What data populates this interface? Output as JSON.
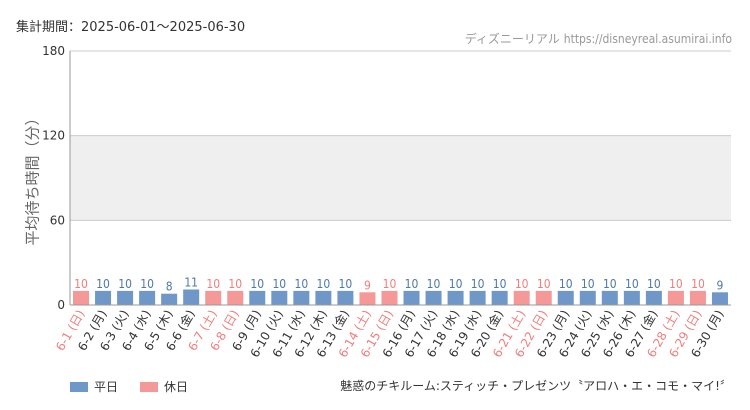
{
  "period": "集計期間：2025-06-01～2025-06-30",
  "source": {
    "site": "ディズニーリアル",
    "url": "https://disneyreal.asumirai.info"
  },
  "attraction": "魅惑のチキルーム:スティッチ・プレゼンツ〝アロハ・エ・コモ・マイ!〞",
  "colors": {
    "weekday": "#6f98c8",
    "holiday": "#f59898",
    "weekday_label": "#4f79a8",
    "holiday_label": "#ef7f7f",
    "band": "#efefef",
    "grid": "#cccccc",
    "axis": "#999999"
  },
  "chart_data": {
    "type": "bar",
    "ylabel": "平均待ち時間（分）",
    "ylim": [
      0,
      180
    ],
    "yticks": [
      0,
      60,
      120,
      180
    ],
    "shaded_band": [
      60,
      120
    ],
    "legend": [
      {
        "key": "weekday",
        "label": "平日"
      },
      {
        "key": "holiday",
        "label": "休日"
      }
    ],
    "categories": [
      "6-1 (日)",
      "6-2 (月)",
      "6-3 (火)",
      "6-4 (水)",
      "6-5 (木)",
      "6-6 (金)",
      "6-7 (土)",
      "6-8 (日)",
      "6-9 (月)",
      "6-10 (火)",
      "6-11 (水)",
      "6-12 (木)",
      "6-13 (金)",
      "6-14 (土)",
      "6-15 (日)",
      "6-16 (月)",
      "6-17 (火)",
      "6-18 (水)",
      "6-19 (水)",
      "6-20 (金)",
      "6-21 (土)",
      "6-22 (日)",
      "6-23 (月)",
      "6-24 (火)",
      "6-25 (水)",
      "6-26 (木)",
      "6-27 (金)",
      "6-28 (土)",
      "6-29 (日)",
      "6-30 (月)"
    ],
    "values": [
      10,
      10,
      10,
      10,
      8,
      11,
      10,
      10,
      10,
      10,
      10,
      10,
      10,
      9,
      10,
      10,
      10,
      10,
      10,
      10,
      10,
      10,
      10,
      10,
      10,
      10,
      10,
      10,
      10,
      9
    ],
    "day_type": [
      "holiday",
      "weekday",
      "weekday",
      "weekday",
      "weekday",
      "weekday",
      "holiday",
      "holiday",
      "weekday",
      "weekday",
      "weekday",
      "weekday",
      "weekday",
      "holiday",
      "holiday",
      "weekday",
      "weekday",
      "weekday",
      "weekday",
      "weekday",
      "holiday",
      "holiday",
      "weekday",
      "weekday",
      "weekday",
      "weekday",
      "weekday",
      "holiday",
      "holiday",
      "weekday"
    ]
  }
}
